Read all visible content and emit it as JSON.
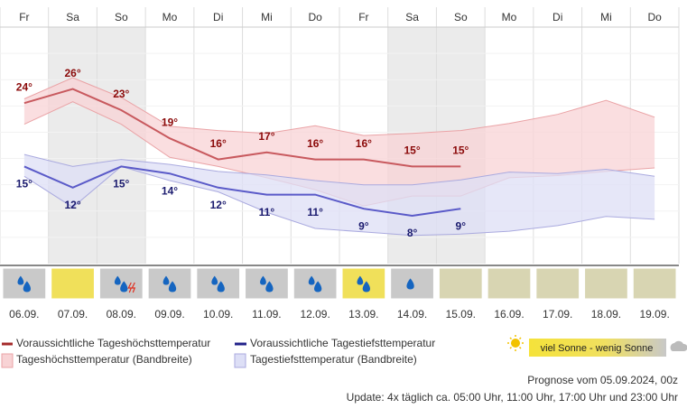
{
  "chart_data": {
    "type": "line",
    "day_names": [
      "Fr",
      "Sa",
      "So",
      "Mo",
      "Di",
      "Mi",
      "Do",
      "Fr",
      "Sa",
      "So",
      "Mo",
      "Di",
      "Mi",
      "Do"
    ],
    "categories": [
      "06.09.",
      "07.09.",
      "08.09.",
      "09.09.",
      "10.09.",
      "11.09.",
      "12.09.",
      "13.09.",
      "14.09.",
      "15.09.",
      "16.09.",
      "17.09.",
      "18.09.",
      "19.09."
    ],
    "ylim": [
      1.2,
      34.8
    ],
    "series": [
      {
        "name": "Voraussichtliche Tageshöchsttemperatur",
        "color": "#c8595e",
        "label_color": "#8b0a0a",
        "values": [
          24,
          26,
          23,
          19,
          16,
          17,
          16,
          16,
          15,
          15,
          null,
          null,
          null,
          null
        ],
        "value_labels": [
          "24°",
          "26°",
          "23°",
          "19°",
          "16°",
          "17°",
          "16°",
          "16°",
          "15°",
          "15°",
          null,
          null,
          null,
          null
        ]
      },
      {
        "name": "Voraussichtliche Tagestiefsttemperatur",
        "color": "#5a5ac8",
        "label_color": "#1a1a6e",
        "values": [
          15,
          12,
          15,
          14,
          12,
          11,
          11,
          9,
          8,
          9,
          null,
          null,
          null,
          null
        ],
        "value_labels": [
          "15°",
          "12°",
          "15°",
          "14°",
          "12°",
          "11°",
          "11°",
          "9°",
          "8°",
          "9°",
          null,
          null,
          null,
          null
        ]
      }
    ],
    "bands": [
      {
        "name": "Tageshöchsttemperatur (Bandbreite)",
        "color": "#f8d3d5",
        "stroke": "#eaa3a6",
        "upper": [
          24.6,
          27.6,
          24.8,
          20.7,
          20.1,
          19.7,
          20.8,
          19.4,
          19.7,
          20.1,
          21.1,
          22.4,
          24.4,
          22.0
        ],
        "lower": [
          21.0,
          24.2,
          21.0,
          16.3,
          15.0,
          13.4,
          11.7,
          9.4,
          10.8,
          10.8,
          13.4,
          13.7,
          14.3,
          14.8
        ]
      },
      {
        "name": "Tagestiefsttemperatur (Bandbreite)",
        "color": "#dddff6",
        "stroke": "#aaaadf",
        "upper": [
          16.7,
          15.0,
          16.0,
          15.3,
          14.3,
          13.8,
          13.0,
          12.4,
          12.4,
          13.1,
          14.2,
          14.0,
          14.6,
          13.6
        ],
        "lower": [
          13.6,
          9.2,
          15.0,
          13.0,
          11.4,
          8.5,
          6.2,
          5.7,
          5.2,
          5.4,
          5.8,
          6.6,
          7.9,
          7.5
        ]
      }
    ],
    "sunshine_legend": "viel Sonne - wenig Sonne",
    "forecast_note": "Prognose vom 05.09.2024, 00z",
    "update_note": "Update: 4x täglich ca. 05:00 Uhr, 11:00 Uhr, 17:00 Uhr und 23:00 Uhr"
  }
}
